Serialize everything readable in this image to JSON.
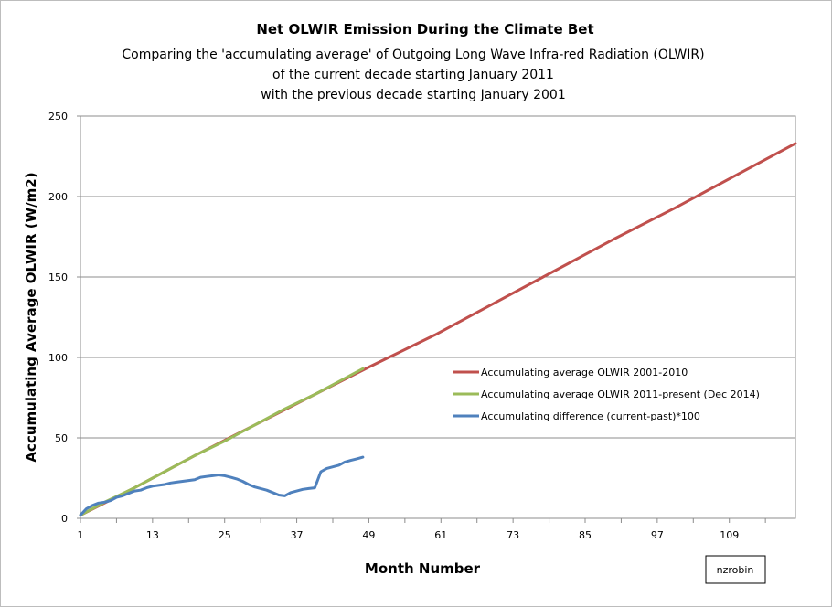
{
  "chart_data": {
    "type": "line",
    "title": "Net OLWIR Emission  During the Climate  Bet",
    "subtitle_lines": [
      "Comparing the 'accumulating average' of Outgoing Long Wave Infra-red Radiation (OLWIR)",
      "of the current decade starting January 2011",
      "with the previous decade starting January 2001"
    ],
    "xlabel": "Month Number",
    "ylabel": "Accumulating Average OLWIR (W/m2)",
    "xlim": [
      1,
      120
    ],
    "ylim": [
      0,
      250
    ],
    "x_ticks": [
      1,
      13,
      25,
      37,
      49,
      61,
      73,
      85,
      97,
      109
    ],
    "y_ticks": [
      0,
      50,
      100,
      150,
      200,
      250
    ],
    "grid": "horizontal",
    "legend_position": "right-middle",
    "credit": "nzrobin",
    "series": [
      {
        "name": "Accumulating average OLWIR 2001-2010",
        "color": "#c0504d",
        "x": [
          1,
          10,
          20,
          30,
          40,
          49,
          60,
          70,
          80,
          90,
          100,
          110,
          120
        ],
        "y": [
          2,
          19,
          39,
          58,
          77,
          94,
          114,
          134,
          154,
          174,
          193,
          213,
          233
        ]
      },
      {
        "name": "Accumulating average OLWIR 2011-present (Dec 2014)",
        "color": "#9bbb59",
        "x": [
          1,
          5,
          10,
          15,
          20,
          25,
          30,
          35,
          40,
          45,
          48
        ],
        "y": [
          2,
          10,
          19,
          29,
          39,
          48,
          58,
          68,
          77,
          87,
          93
        ]
      },
      {
        "name": "Accumulating difference (current-past)*100",
        "color": "#4f81bd",
        "x": [
          1,
          2,
          3,
          4,
          5,
          6,
          7,
          8,
          9,
          10,
          11,
          12,
          13,
          14,
          15,
          16,
          17,
          18,
          19,
          20,
          21,
          22,
          23,
          24,
          25,
          26,
          27,
          28,
          29,
          30,
          31,
          32,
          33,
          34,
          35,
          36,
          37,
          38,
          39,
          40,
          41,
          42,
          43,
          44,
          45,
          46,
          47,
          48
        ],
        "y": [
          2,
          6,
          8,
          9.5,
          10,
          11,
          13,
          14,
          15.5,
          17,
          17.5,
          19,
          20,
          20.5,
          21,
          22,
          22.5,
          23,
          23.5,
          24,
          25.5,
          26,
          26.5,
          27,
          26.5,
          25.5,
          24.5,
          23,
          21,
          19.5,
          18.5,
          17.5,
          16,
          14.5,
          14,
          16,
          17,
          18,
          18.5,
          19,
          29,
          31,
          32,
          33,
          35,
          36,
          37,
          38
        ]
      }
    ]
  }
}
